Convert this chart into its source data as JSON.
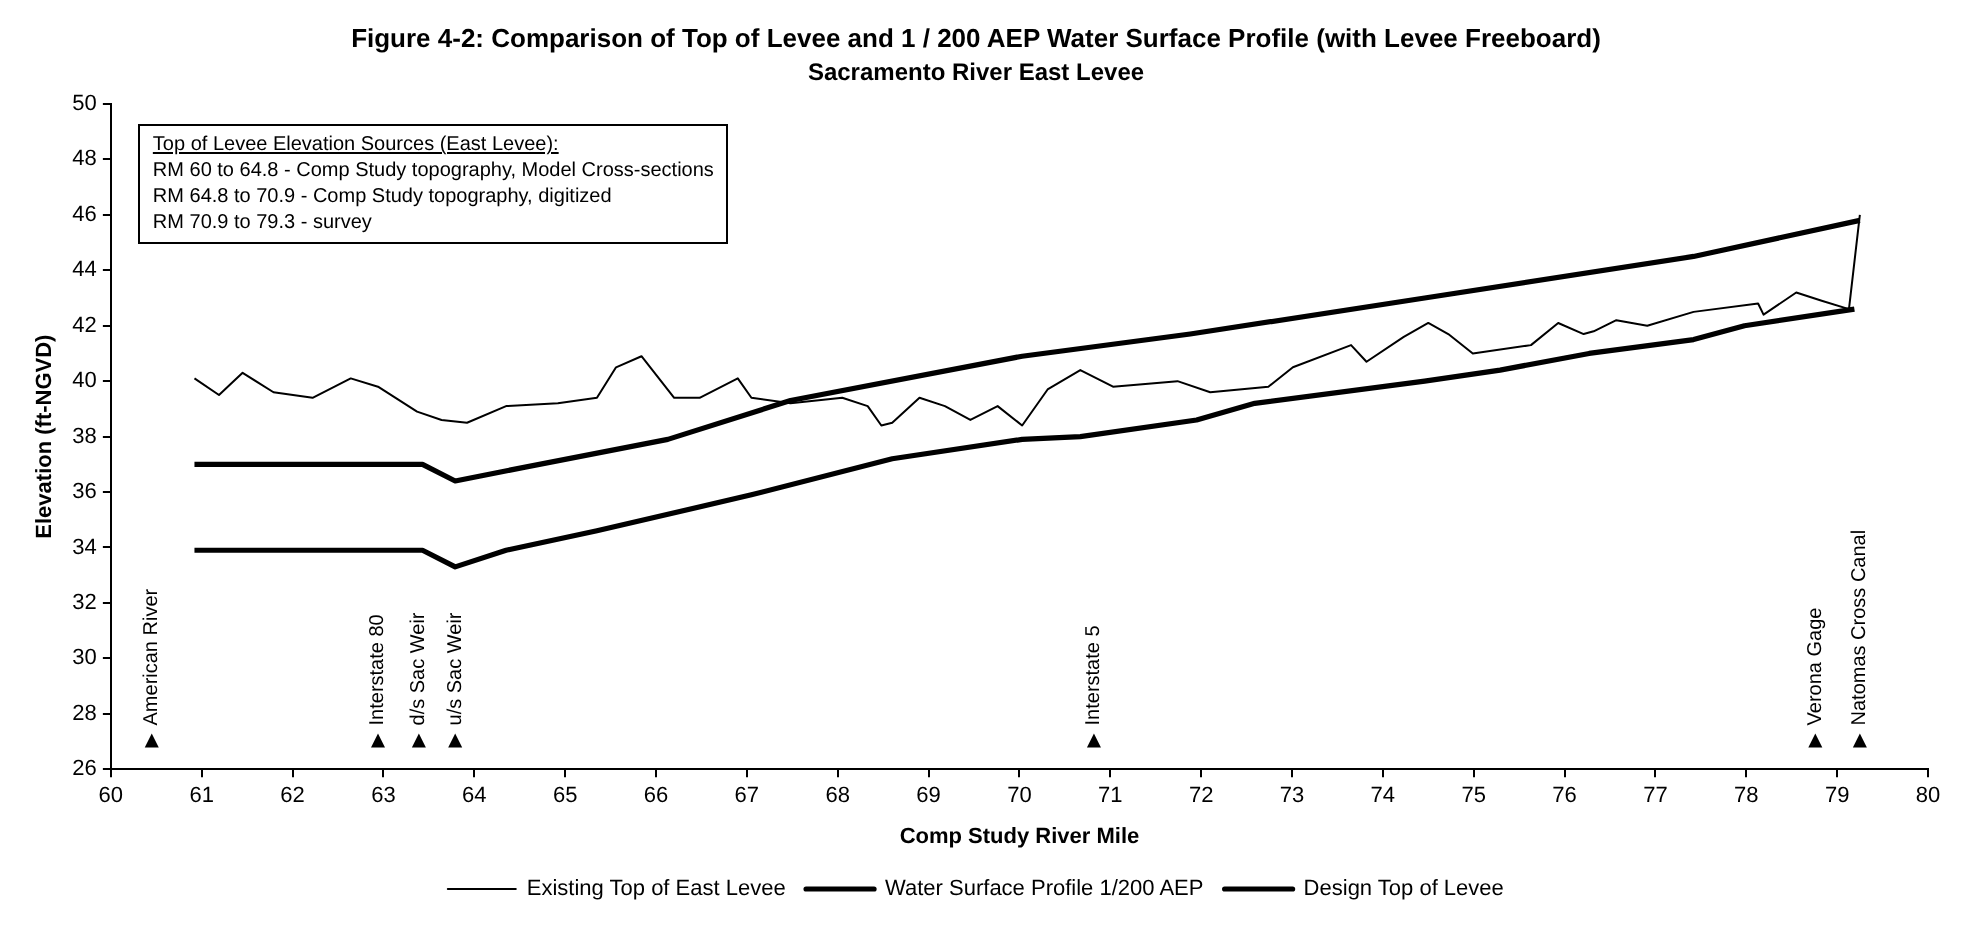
{
  "chart_data": {
    "type": "line",
    "title": "Figure 4-2: Comparison of Top of Levee and 1 / 200 AEP Water Surface Profile (with Levee Freeboard)",
    "subtitle": "Sacramento River East Levee",
    "xlabel": "Comp Study River Mile",
    "ylabel": "Elevation (ft-NGVD)",
    "xlim": [
      60,
      80
    ],
    "xticks": [
      60,
      61,
      62,
      63,
      64,
      65,
      66,
      67,
      68,
      69,
      70,
      71,
      72,
      73,
      74,
      75,
      76,
      77,
      78,
      79,
      80
    ],
    "ylim": [
      26,
      50
    ],
    "yticks": [
      26,
      28,
      30,
      32,
      34,
      36,
      38,
      40,
      42,
      44,
      46,
      48,
      50
    ],
    "grid": false,
    "legend": "bottom",
    "marker": "none",
    "line_style": "solid",
    "series": [
      {
        "name": "Existing Top of East Levee",
        "color": "#000000",
        "x": [
          79.25,
          79.13,
          78.83,
          78.55,
          78.19,
          78.13,
          77.42,
          76.91,
          76.57,
          76.32,
          76.21,
          75.93,
          75.63,
          74.99,
          74.72,
          74.5,
          74.23,
          73.82,
          73.65,
          73.01,
          72.74,
          72.1,
          71.74,
          71.03,
          70.67,
          70.31,
          70.03,
          69.76,
          69.46,
          69.18,
          68.9,
          68.6,
          68.48,
          68.33,
          68.05,
          67.48,
          67.05,
          66.9,
          66.48,
          66.2,
          65.84,
          65.56,
          65.35,
          64.92,
          64.35,
          63.92,
          63.64,
          63.37,
          62.94,
          62.64,
          62.22,
          61.79,
          61.45,
          61.19,
          60.92
        ],
        "values": [
          46.0,
          42.6,
          42.9,
          43.2,
          42.4,
          42.8,
          42.5,
          42.0,
          42.2,
          41.8,
          41.7,
          42.1,
          41.3,
          41.0,
          41.7,
          42.1,
          41.6,
          40.7,
          41.3,
          40.5,
          39.8,
          39.6,
          40.0,
          39.8,
          40.4,
          39.7,
          38.4,
          39.1,
          38.6,
          39.1,
          39.4,
          38.5,
          38.4,
          39.1,
          39.4,
          39.2,
          39.4,
          40.1,
          39.4,
          39.4,
          40.9,
          40.5,
          39.4,
          39.2,
          39.1,
          38.5,
          38.6,
          38.9,
          39.8,
          40.1,
          39.4,
          39.6,
          40.3,
          39.5,
          40.1
        ]
      },
      {
        "name": "Water Surface Profile 1/200 AEP",
        "color": "#000000",
        "x": [
          79.19,
          77.98,
          77.42,
          76.27,
          75.29,
          74.46,
          72.59,
          71.95,
          70.67,
          70.03,
          68.6,
          67.05,
          65.35,
          64.35,
          63.79,
          63.43,
          60.92
        ],
        "values": [
          42.6,
          42.0,
          41.5,
          41.0,
          40.4,
          40.0,
          39.2,
          38.6,
          38.0,
          37.9,
          37.2,
          35.9,
          34.6,
          33.9,
          33.3,
          33.9,
          33.9
        ]
      },
      {
        "name": "Design Top of Levee",
        "color": "#000000",
        "x": [
          79.25,
          77.42,
          74.46,
          71.88,
          70.03,
          67.48,
          66.13,
          64.56,
          63.79,
          63.43,
          60.92
        ],
        "values": [
          45.8,
          44.5,
          43.0,
          41.7,
          40.9,
          39.3,
          37.9,
          36.9,
          36.4,
          37.0,
          37.0
        ]
      }
    ],
    "annotations": [
      "Top of Levee Elevation Sources (East Levee):",
      "RM 60 to 64.8 - Comp Study topography, Model Cross-sections",
      "RM 64.8 to 70.9 - Comp Study topography, digitized",
      "RM 70.9 to 79.3 - survey",
      {
        "text": "Natomas Cross Canal",
        "x": 79.25,
        "y": 27
      },
      {
        "text": "Verona Gage",
        "x": 78.76,
        "y": 27
      },
      {
        "text": "Interstate 5",
        "x": 70.82,
        "y": 27
      },
      {
        "text": "u/s Sac Weir",
        "x": 63.79,
        "y": 27
      },
      {
        "text": "d/s Sac Weir",
        "x": 63.39,
        "y": 27
      },
      {
        "text": "Interstate 80",
        "x": 62.94,
        "y": 27
      },
      {
        "text": "American River",
        "x": 60.45,
        "y": 27
      }
    ]
  }
}
